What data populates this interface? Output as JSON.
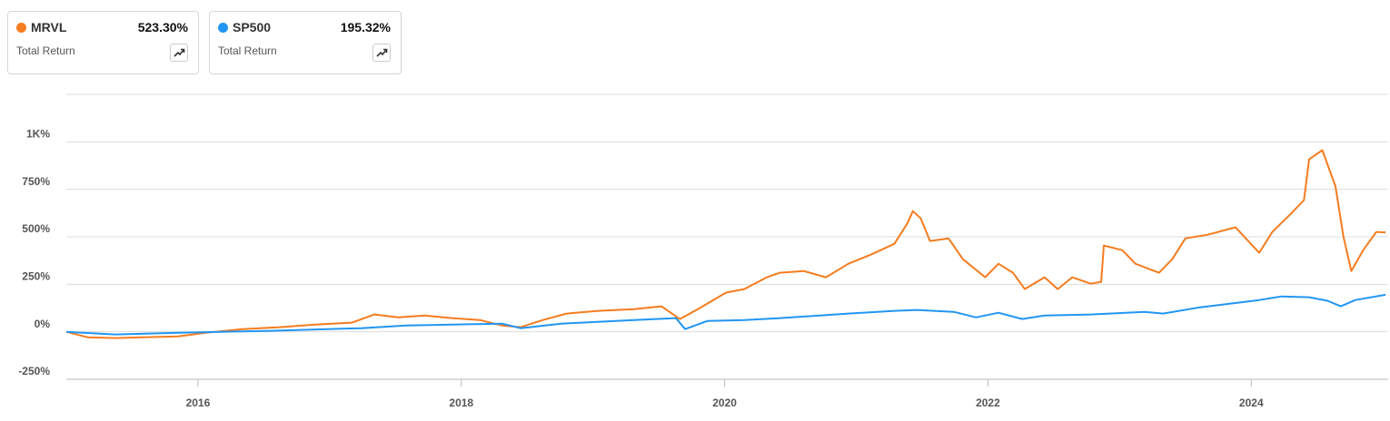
{
  "chart_data": {
    "type": "line",
    "xlim": [
      2015.0,
      2025.04
    ],
    "xticks": [
      2016,
      2018,
      2020,
      2022,
      2024
    ],
    "ylim": [
      -250,
      1250
    ],
    "yticks": [
      {
        "value": -250,
        "label": "-250%"
      },
      {
        "value": 0,
        "label": "0%"
      },
      {
        "value": 250,
        "label": "250%"
      },
      {
        "value": 500,
        "label": "500%"
      },
      {
        "value": 750,
        "label": "750%"
      },
      {
        "value": 1000,
        "label": "1K%"
      }
    ],
    "grid": true,
    "series": [
      {
        "name": "MRVL",
        "color": "#f57c1f",
        "total_return": "523.30%",
        "caption": "Total Return",
        "x": [
          2015.0,
          2015.16,
          2015.37,
          2015.58,
          2015.85,
          2016.06,
          2016.34,
          2016.62,
          2016.89,
          2017.17,
          2017.34,
          2017.52,
          2017.72,
          2017.93,
          2018.14,
          2018.31,
          2018.45,
          2018.62,
          2018.8,
          2019.04,
          2019.31,
          2019.52,
          2019.66,
          2019.8,
          2020.01,
          2020.15,
          2020.32,
          2020.42,
          2020.6,
          2020.77,
          2020.94,
          2021.11,
          2021.29,
          2021.39,
          2021.43,
          2021.49,
          2021.56,
          2021.7,
          2021.81,
          2021.98,
          2022.08,
          2022.19,
          2022.28,
          2022.43,
          2022.53,
          2022.64,
          2022.78,
          2022.86,
          2022.88,
          2023.02,
          2023.12,
          2023.3,
          2023.4,
          2023.5,
          2023.67,
          2023.88,
          2024.06,
          2024.16,
          2024.3,
          2024.4,
          2024.44,
          2024.54,
          2024.64,
          2024.7,
          2024.76,
          2024.85,
          2024.95,
          2025.02
        ],
        "values": [
          0,
          -29,
          -33,
          -29,
          -24,
          -5,
          14,
          24,
          38,
          48,
          91,
          76,
          86,
          72,
          62,
          33,
          24,
          62,
          96,
          110,
          119,
          134,
          67,
          120,
          206,
          225,
          287,
          311,
          320,
          287,
          358,
          406,
          463,
          573,
          635,
          597,
          478,
          492,
          382,
          287,
          358,
          311,
          225,
          287,
          225,
          287,
          253,
          263,
          454,
          430,
          358,
          311,
          382,
          492,
          511,
          550,
          416,
          526,
          621,
          693,
          908,
          956,
          765,
          502,
          320,
          430,
          526,
          523.3
        ]
      },
      {
        "name": "SP500",
        "color": "#2196f3",
        "total_return": "195.32%",
        "caption": "Total Return",
        "x": [
          2015.0,
          2015.37,
          2015.85,
          2016.55,
          2017.24,
          2017.58,
          2017.93,
          2018.31,
          2018.45,
          2018.76,
          2019.31,
          2019.63,
          2019.7,
          2019.87,
          2020.15,
          2020.42,
          2020.94,
          2021.29,
          2021.46,
          2021.74,
          2021.91,
          2022.08,
          2022.26,
          2022.43,
          2022.78,
          2023.19,
          2023.33,
          2023.61,
          2024.06,
          2024.23,
          2024.44,
          2024.58,
          2024.68,
          2024.79,
          2025.02
        ],
        "values": [
          0,
          -14,
          -5,
          5,
          19,
          33,
          38,
          43,
          19,
          43,
          62,
          72,
          14,
          57,
          62,
          72,
          96,
          110,
          115,
          105,
          76,
          100,
          67,
          86,
          91,
          105,
          96,
          129,
          167,
          186,
          182,
          163,
          134,
          167,
          195.32
        ]
      }
    ]
  }
}
